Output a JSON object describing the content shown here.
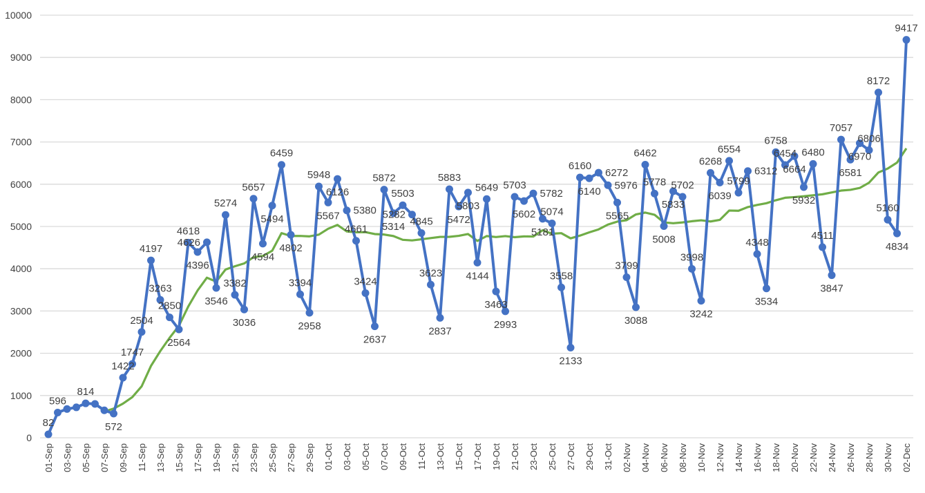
{
  "chart_data": {
    "type": "line",
    "title": "",
    "xlabel": "",
    "ylabel": "",
    "ylim": [
      0,
      10000
    ],
    "yticks": [
      0,
      1000,
      2000,
      3000,
      4000,
      5000,
      6000,
      7000,
      8000,
      9000,
      10000
    ],
    "grid": true,
    "legend": "none",
    "categories": [
      "01-Sep",
      "02-Sep",
      "03-Sep",
      "04-Sep",
      "05-Sep",
      "06-Sep",
      "07-Sep",
      "08-Sep",
      "09-Sep",
      "10-Sep",
      "11-Sep",
      "12-Sep",
      "13-Sep",
      "14-Sep",
      "15-Sep",
      "16-Sep",
      "17-Sep",
      "18-Sep",
      "19-Sep",
      "20-Sep",
      "21-Sep",
      "22-Sep",
      "23-Sep",
      "24-Sep",
      "25-Sep",
      "26-Sep",
      "27-Sep",
      "28-Sep",
      "29-Sep",
      "30-Sep",
      "01-Oct",
      "02-Oct",
      "03-Oct",
      "04-Oct",
      "05-Oct",
      "06-Oct",
      "07-Oct",
      "08-Oct",
      "09-Oct",
      "10-Oct",
      "11-Oct",
      "12-Oct",
      "13-Oct",
      "14-Oct",
      "15-Oct",
      "16-Oct",
      "17-Oct",
      "18-Oct",
      "19-Oct",
      "20-Oct",
      "21-Oct",
      "22-Oct",
      "23-Oct",
      "24-Oct",
      "25-Oct",
      "26-Oct",
      "27-Oct",
      "28-Oct",
      "29-Oct",
      "30-Oct",
      "31-Oct",
      "01-Nov",
      "02-Nov",
      "03-Nov",
      "04-Nov",
      "05-Nov",
      "06-Nov",
      "07-Nov",
      "08-Nov",
      "09-Nov",
      "10-Nov",
      "11-Nov",
      "12-Nov",
      "13-Nov",
      "14-Nov",
      "15-Nov",
      "16-Nov",
      "17-Nov",
      "18-Nov",
      "19-Nov",
      "20-Nov",
      "21-Nov",
      "22-Nov",
      "23-Nov",
      "24-Nov",
      "25-Nov",
      "26-Nov",
      "27-Nov",
      "28-Nov",
      "29-Nov",
      "30-Nov",
      "01-Dec",
      "02-Dec"
    ],
    "tick_every": 2,
    "series": [
      {
        "color": "#4472C4",
        "markers": true,
        "values": [
          82,
          596,
          680,
          720,
          814,
          800,
          650,
          572,
          1422,
          1747,
          2504,
          4197,
          3263,
          2850,
          2564,
          4618,
          4396,
          4626,
          3546,
          5274,
          3382,
          3036,
          5657,
          4594,
          5494,
          6459,
          4802,
          3394,
          2958,
          5948,
          5567,
          6126,
          5380,
          4661,
          3424,
          2637,
          5872,
          5314,
          5503,
          5282,
          4845,
          3623,
          2837,
          5883,
          5472,
          5803,
          4144,
          5649,
          3463,
          2993,
          5703,
          5602,
          5782,
          5181,
          5074,
          3558,
          2133,
          6160,
          6140,
          6272,
          5976,
          5565,
          3799,
          3088,
          6462,
          5778,
          5008,
          5833,
          5702,
          3998,
          3242,
          6268,
          6039,
          6554,
          5799,
          6312,
          4348,
          3534,
          6758,
          6454,
          6664,
          5932,
          6480,
          4511,
          3847,
          7057,
          6581,
          6970,
          6806,
          8172,
          5160,
          4834,
          9417
        ],
        "labels": [
          "82",
          "596",
          "",
          "",
          "814",
          "",
          "",
          "572",
          "1422",
          "1747",
          "2504",
          "4197",
          "3263",
          "2850",
          "2564",
          "4618",
          "4396",
          "4626",
          "3546",
          "5274",
          "3382",
          "3036",
          "5657",
          "4594",
          "5494",
          "6459",
          "4802",
          "3394",
          "2958",
          "5948",
          "5567",
          "6126",
          "5380",
          "4661",
          "3424",
          "2637",
          "5872",
          "5314",
          "5503",
          "5282",
          "4845",
          "3623",
          "2837",
          "5883",
          "5472",
          "5803",
          "4144",
          "5649",
          "3463",
          "2993",
          "5703",
          "5602",
          "5782",
          "5181",
          "5074",
          "3558",
          "2133",
          "6160",
          "6140",
          "6272",
          "5976",
          "5565",
          "3799",
          "3088",
          "6462",
          "5778",
          "5008",
          "5833",
          "5702",
          "3998",
          "3242",
          "6268",
          "6039",
          "6554",
          "5799",
          "6312",
          "4348",
          "3534",
          "6758",
          "6454",
          "6664",
          "5932",
          "6480",
          "4511",
          "3847",
          "7057",
          "6581",
          "6970",
          "6806",
          "8172",
          "5160",
          "4834",
          "9417"
        ]
      }
    ],
    "trendline": {
      "type": "moving_average",
      "period": 7,
      "color": "#70AD47"
    }
  }
}
